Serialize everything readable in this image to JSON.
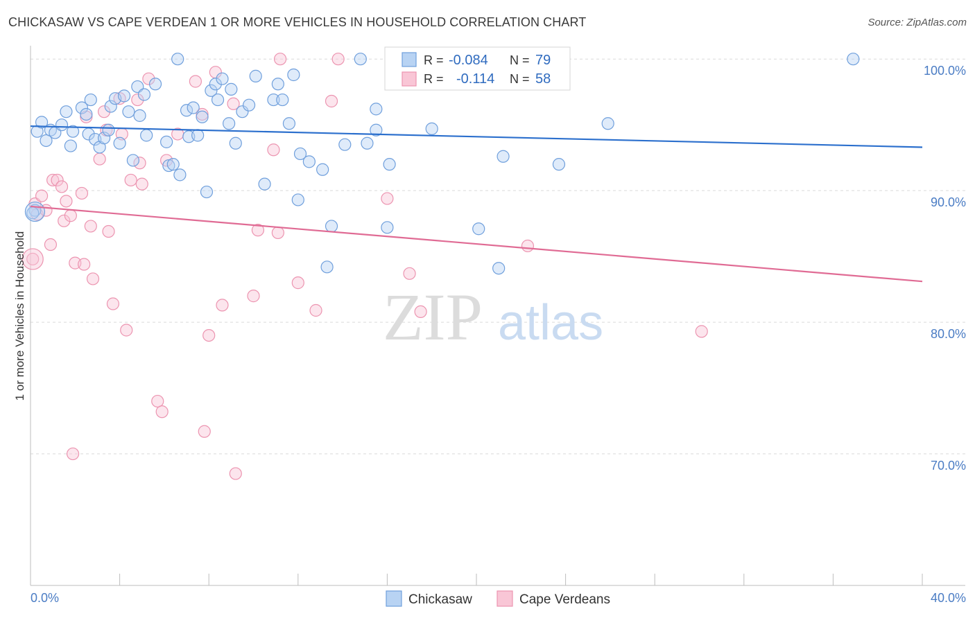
{
  "title": "CHICKASAW VS CAPE VERDEAN 1 OR MORE VEHICLES IN HOUSEHOLD CORRELATION CHART",
  "source": "Source: ZipAtlas.com",
  "watermark": {
    "zip": "ZIP",
    "atlas": "atlas"
  },
  "colors": {
    "blue_fill": "#b8d3f3",
    "blue_stroke": "#6f9fdc",
    "blue_line": "#2b6fcd",
    "pink_fill": "#f9c6d6",
    "pink_stroke": "#ec94b0",
    "pink_line": "#e06b94",
    "grid": "#d9d9d9",
    "tick_text": "#4a7cc4"
  },
  "stats_legend": [
    {
      "r_label": "R =",
      "r_value": "-0.084",
      "n_label": "N =",
      "n_value": "79"
    },
    {
      "r_label": "R =",
      "r_value": "-0.114",
      "n_label": "N =",
      "n_value": "58"
    }
  ],
  "chart_data": {
    "type": "scatter",
    "title": "CHICKASAW VS CAPE VERDEAN 1 OR MORE VEHICLES IN HOUSEHOLD CORRELATION CHART",
    "xlabel": "",
    "ylabel": "1 or more Vehicles in Household",
    "xlim": [
      0,
      40
    ],
    "ylim": [
      60,
      100.8
    ],
    "x_tick_labels": [
      "0.0%",
      "40.0%"
    ],
    "y_ticks": [
      70,
      80,
      90,
      100
    ],
    "y_tick_labels": [
      "70.0%",
      "80.0%",
      "90.0%",
      "100.0%"
    ],
    "grid": true,
    "legend_position": "bottom-center",
    "series": [
      {
        "name": "Chickasaw",
        "color": "#6f9fdc",
        "trend": {
          "x": [
            0,
            40
          ],
          "y": [
            94.9,
            93.3
          ]
        },
        "points": [
          [
            0.3,
            94.5
          ],
          [
            0.5,
            95.2
          ],
          [
            0.7,
            93.8
          ],
          [
            0.9,
            94.6
          ],
          [
            1.1,
            94.4
          ],
          [
            1.4,
            95.0
          ],
          [
            1.6,
            96.0
          ],
          [
            1.8,
            93.4
          ],
          [
            1.9,
            94.5
          ],
          [
            2.3,
            96.3
          ],
          [
            2.5,
            95.8
          ],
          [
            2.6,
            94.3
          ],
          [
            2.7,
            96.9
          ],
          [
            2.9,
            93.9
          ],
          [
            3.1,
            93.3
          ],
          [
            3.3,
            94.0
          ],
          [
            3.5,
            94.6
          ],
          [
            3.6,
            96.4
          ],
          [
            3.8,
            97.0
          ],
          [
            4.0,
            93.6
          ],
          [
            4.2,
            97.2
          ],
          [
            4.4,
            96.0
          ],
          [
            4.6,
            92.3
          ],
          [
            4.8,
            97.9
          ],
          [
            4.9,
            95.7
          ],
          [
            5.1,
            97.3
          ],
          [
            5.2,
            94.2
          ],
          [
            5.6,
            98.1
          ],
          [
            6.1,
            93.7
          ],
          [
            6.2,
            91.9
          ],
          [
            6.4,
            92.0
          ],
          [
            6.6,
            100.0
          ],
          [
            6.7,
            91.2
          ],
          [
            7.0,
            96.1
          ],
          [
            7.1,
            94.1
          ],
          [
            7.3,
            96.3
          ],
          [
            7.5,
            94.2
          ],
          [
            7.7,
            95.6
          ],
          [
            7.9,
            89.9
          ],
          [
            8.1,
            97.6
          ],
          [
            8.3,
            98.1
          ],
          [
            8.4,
            96.9
          ],
          [
            8.6,
            98.5
          ],
          [
            8.9,
            95.1
          ],
          [
            9.0,
            97.7
          ],
          [
            9.2,
            93.6
          ],
          [
            9.5,
            96.0
          ],
          [
            9.8,
            96.5
          ],
          [
            10.1,
            98.7
          ],
          [
            10.5,
            90.5
          ],
          [
            10.9,
            96.9
          ],
          [
            11.1,
            98.1
          ],
          [
            11.3,
            96.9
          ],
          [
            11.6,
            95.1
          ],
          [
            11.8,
            98.8
          ],
          [
            12.0,
            89.3
          ],
          [
            12.1,
            92.8
          ],
          [
            12.5,
            92.2
          ],
          [
            13.1,
            91.6
          ],
          [
            13.3,
            84.2
          ],
          [
            13.5,
            87.3
          ],
          [
            14.1,
            93.5
          ],
          [
            14.8,
            100.0
          ],
          [
            15.1,
            93.6
          ],
          [
            15.5,
            94.6
          ],
          [
            15.5,
            96.2
          ],
          [
            16.0,
            87.2
          ],
          [
            16.1,
            92.0
          ],
          [
            18.0,
            94.7
          ],
          [
            18.2,
            100.0
          ],
          [
            19.0,
            100.0
          ],
          [
            20.1,
            87.1
          ],
          [
            21.0,
            84.1
          ],
          [
            21.2,
            92.6
          ],
          [
            23.7,
            92.0
          ],
          [
            25.9,
            95.1
          ],
          [
            36.9,
            100.0
          ],
          [
            0.2,
            88.5
          ],
          [
            0.1,
            88.3
          ]
        ]
      },
      {
        "name": "Cape Verdeans",
        "color": "#ec94b0",
        "trend": {
          "x": [
            0,
            40
          ],
          "y": [
            88.8,
            83.1
          ]
        },
        "points": [
          [
            0.1,
            84.8
          ],
          [
            0.2,
            89.0
          ],
          [
            0.3,
            88.2
          ],
          [
            0.5,
            89.6
          ],
          [
            0.7,
            88.5
          ],
          [
            0.9,
            85.9
          ],
          [
            1.0,
            90.8
          ],
          [
            1.2,
            90.8
          ],
          [
            1.4,
            90.3
          ],
          [
            1.5,
            87.7
          ],
          [
            1.6,
            89.2
          ],
          [
            1.8,
            88.1
          ],
          [
            1.9,
            70.0
          ],
          [
            2.0,
            84.5
          ],
          [
            2.3,
            89.8
          ],
          [
            2.4,
            84.4
          ],
          [
            2.5,
            95.6
          ],
          [
            2.7,
            87.3
          ],
          [
            2.8,
            83.3
          ],
          [
            3.1,
            92.4
          ],
          [
            3.3,
            96.0
          ],
          [
            3.4,
            94.6
          ],
          [
            3.5,
            86.9
          ],
          [
            3.7,
            81.4
          ],
          [
            4.0,
            97.0
          ],
          [
            4.1,
            94.3
          ],
          [
            4.3,
            79.4
          ],
          [
            4.5,
            90.8
          ],
          [
            4.8,
            96.9
          ],
          [
            4.9,
            92.1
          ],
          [
            5.0,
            90.5
          ],
          [
            5.3,
            98.5
          ],
          [
            5.7,
            74.0
          ],
          [
            5.9,
            73.2
          ],
          [
            6.1,
            92.3
          ],
          [
            6.6,
            94.3
          ],
          [
            7.4,
            98.3
          ],
          [
            7.7,
            95.8
          ],
          [
            7.8,
            71.7
          ],
          [
            8.0,
            79.0
          ],
          [
            8.3,
            99.0
          ],
          [
            8.6,
            81.3
          ],
          [
            9.1,
            96.6
          ],
          [
            9.2,
            68.5
          ],
          [
            10.0,
            82.0
          ],
          [
            10.2,
            87.0
          ],
          [
            10.9,
            93.1
          ],
          [
            11.1,
            86.8
          ],
          [
            11.2,
            100.0
          ],
          [
            12.0,
            83.0
          ],
          [
            12.8,
            80.9
          ],
          [
            13.5,
            96.8
          ],
          [
            13.8,
            100.0
          ],
          [
            16.0,
            89.4
          ],
          [
            17.0,
            83.7
          ],
          [
            17.5,
            80.8
          ],
          [
            22.3,
            85.8
          ],
          [
            30.1,
            79.3
          ]
        ]
      }
    ]
  },
  "bottom_legend": [
    "Chickasaw",
    "Cape Verdeans"
  ]
}
